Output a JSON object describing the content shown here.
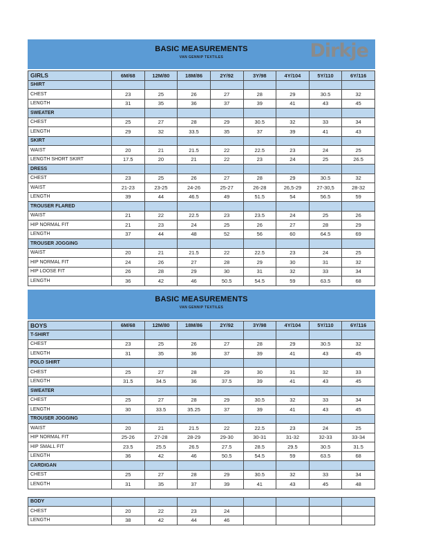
{
  "header": {
    "title": "BASIC MEASUREMENTS",
    "subtitle": "VAN GENNIP TEXTILES",
    "logo_text": "Dirkje"
  },
  "size_columns": [
    "6M/68",
    "12M/80",
    "18M/86",
    "2Y/92",
    "3Y/98",
    "4Y/104",
    "5Y/110",
    "6Y/116"
  ],
  "colors": {
    "band_blue": "#5b9bd5",
    "light_blue_row": "#bdd7ee",
    "logo_gray": "#8b8b8b"
  },
  "tables": [
    {
      "group": "GIRLS",
      "band": true,
      "logo": true,
      "size_header": true,
      "sections": [
        {
          "name": "SHIRT",
          "rows": [
            {
              "label": "CHEST",
              "values": [
                "23",
                "25",
                "26",
                "27",
                "28",
                "29",
                "30.5",
                "32"
              ]
            },
            {
              "label": "LENGTH",
              "values": [
                "31",
                "35",
                "36",
                "37",
                "39",
                "41",
                "43",
                "45"
              ]
            }
          ]
        },
        {
          "name": "SWEATER",
          "rows": [
            {
              "label": "CHEST",
              "values": [
                "25",
                "27",
                "28",
                "29",
                "30.5",
                "32",
                "33",
                "34"
              ]
            },
            {
              "label": "LENGTH",
              "values": [
                "29",
                "32",
                "33.5",
                "35",
                "37",
                "39",
                "41",
                "43"
              ]
            }
          ]
        },
        {
          "name": "SKIRT",
          "rows": [
            {
              "label": "WAIST",
              "values": [
                "20",
                "21",
                "21.5",
                "22",
                "22.5",
                "23",
                "24",
                "25"
              ]
            },
            {
              "label": "LENGTH SHORT SKIRT",
              "values": [
                "17.5",
                "20",
                "21",
                "22",
                "23",
                "24",
                "25",
                "26.5"
              ]
            }
          ]
        },
        {
          "name": "DRESS",
          "rows": [
            {
              "label": "CHEST",
              "values": [
                "23",
                "25",
                "26",
                "27",
                "28",
                "29",
                "30.5",
                "32"
              ]
            },
            {
              "label": "WAIST",
              "values": [
                "21-23",
                "23-25",
                "24-26",
                "25-27",
                "26-28",
                "26,5-29",
                "27-30,5",
                "28-32"
              ]
            },
            {
              "label": "LENGTH",
              "values": [
                "39",
                "44",
                "46.5",
                "49",
                "51.5",
                "54",
                "56.5",
                "59"
              ]
            }
          ]
        },
        {
          "name": "TROUSER FLARED",
          "rows": [
            {
              "label": "WAIST",
              "values": [
                "21",
                "22",
                "22.5",
                "23",
                "23.5",
                "24",
                "25",
                "26"
              ]
            },
            {
              "label": "HIP NORMAL FIT",
              "values": [
                "21",
                "23",
                "24",
                "25",
                "26",
                "27",
                "28",
                "29"
              ]
            },
            {
              "label": "LENGTH",
              "values": [
                "37",
                "44",
                "48",
                "52",
                "56",
                "60",
                "64.5",
                "69"
              ]
            }
          ]
        },
        {
          "name": "TROUSER JOGGING",
          "rows": [
            {
              "label": "WAIST",
              "values": [
                "20",
                "21",
                "21.5",
                "22",
                "22.5",
                "23",
                "24",
                "25"
              ]
            },
            {
              "label": "HIP NORMAL FIT",
              "values": [
                "24",
                "26",
                "27",
                "28",
                "29",
                "30",
                "31",
                "32"
              ]
            },
            {
              "label": "HIP LOOSE FIT",
              "values": [
                "26",
                "28",
                "29",
                "30",
                "31",
                "32",
                "33",
                "34"
              ]
            },
            {
              "label": "LENGTH",
              "values": [
                "36",
                "42",
                "46",
                "50.5",
                "54.5",
                "59",
                "63.5",
                "68"
              ]
            }
          ]
        }
      ]
    },
    {
      "group": "BOYS",
      "band": true,
      "logo": false,
      "size_header": true,
      "sections": [
        {
          "name": "T-SHIRT",
          "rows": [
            {
              "label": "CHEST",
              "values": [
                "23",
                "25",
                "26",
                "27",
                "28",
                "29",
                "30.5",
                "32"
              ]
            },
            {
              "label": "LENGTH",
              "values": [
                "31",
                "35",
                "36",
                "37",
                "39",
                "41",
                "43",
                "45"
              ]
            }
          ]
        },
        {
          "name": "POLO SHIRT",
          "rows": [
            {
              "label": "CHEST",
              "values": [
                "25",
                "27",
                "28",
                "29",
                "30",
                "31",
                "32",
                "33"
              ]
            },
            {
              "label": "LENGTH",
              "values": [
                "31.5",
                "34.5",
                "36",
                "37.5",
                "39",
                "41",
                "43",
                "45"
              ]
            }
          ]
        },
        {
          "name": "SWEATER",
          "rows": [
            {
              "label": "CHEST",
              "values": [
                "25",
                "27",
                "28",
                "29",
                "30.5",
                "32",
                "33",
                "34"
              ]
            },
            {
              "label": "LENGTH",
              "values": [
                "30",
                "33.5",
                "35.25",
                "37",
                "39",
                "41",
                "43",
                "45"
              ]
            }
          ]
        },
        {
          "name": "TROUSER JOGGING",
          "rows": [
            {
              "label": "WAIST",
              "values": [
                "20",
                "21",
                "21.5",
                "22",
                "22.5",
                "23",
                "24",
                "25"
              ]
            },
            {
              "label": "HIP NORMAL FIT",
              "values": [
                "25-26",
                "27-28",
                "28-29",
                "29-30",
                "30-31",
                "31-32",
                "32-33",
                "33-34"
              ]
            },
            {
              "label": "HIP SMALL FIT",
              "values": [
                "23.5",
                "25.5",
                "26.5",
                "27.5",
                "28.5",
                "29.5",
                "30.5",
                "31.5"
              ]
            },
            {
              "label": "LENGTH",
              "values": [
                "36",
                "42",
                "46",
                "50.5",
                "54.5",
                "59",
                "63.5",
                "68"
              ]
            }
          ]
        },
        {
          "name": "CARDIGAN",
          "rows": [
            {
              "label": "CHEST",
              "values": [
                "25",
                "27",
                "28",
                "29",
                "30.5",
                "32",
                "33",
                "34"
              ]
            },
            {
              "label": "LENGTH",
              "values": [
                "31",
                "35",
                "37",
                "39",
                "41",
                "43",
                "45",
                "48"
              ]
            }
          ]
        }
      ]
    },
    {
      "group": "",
      "band": false,
      "logo": false,
      "size_header": false,
      "sections": [
        {
          "name": "BODY",
          "rows": [
            {
              "label": "CHEST",
              "values": [
                "20",
                "22",
                "23",
                "24",
                "",
                "",
                "",
                ""
              ]
            },
            {
              "label": "LENGTH",
              "values": [
                "38",
                "42",
                "44",
                "46",
                "",
                "",
                "",
                ""
              ]
            }
          ]
        }
      ]
    }
  ]
}
